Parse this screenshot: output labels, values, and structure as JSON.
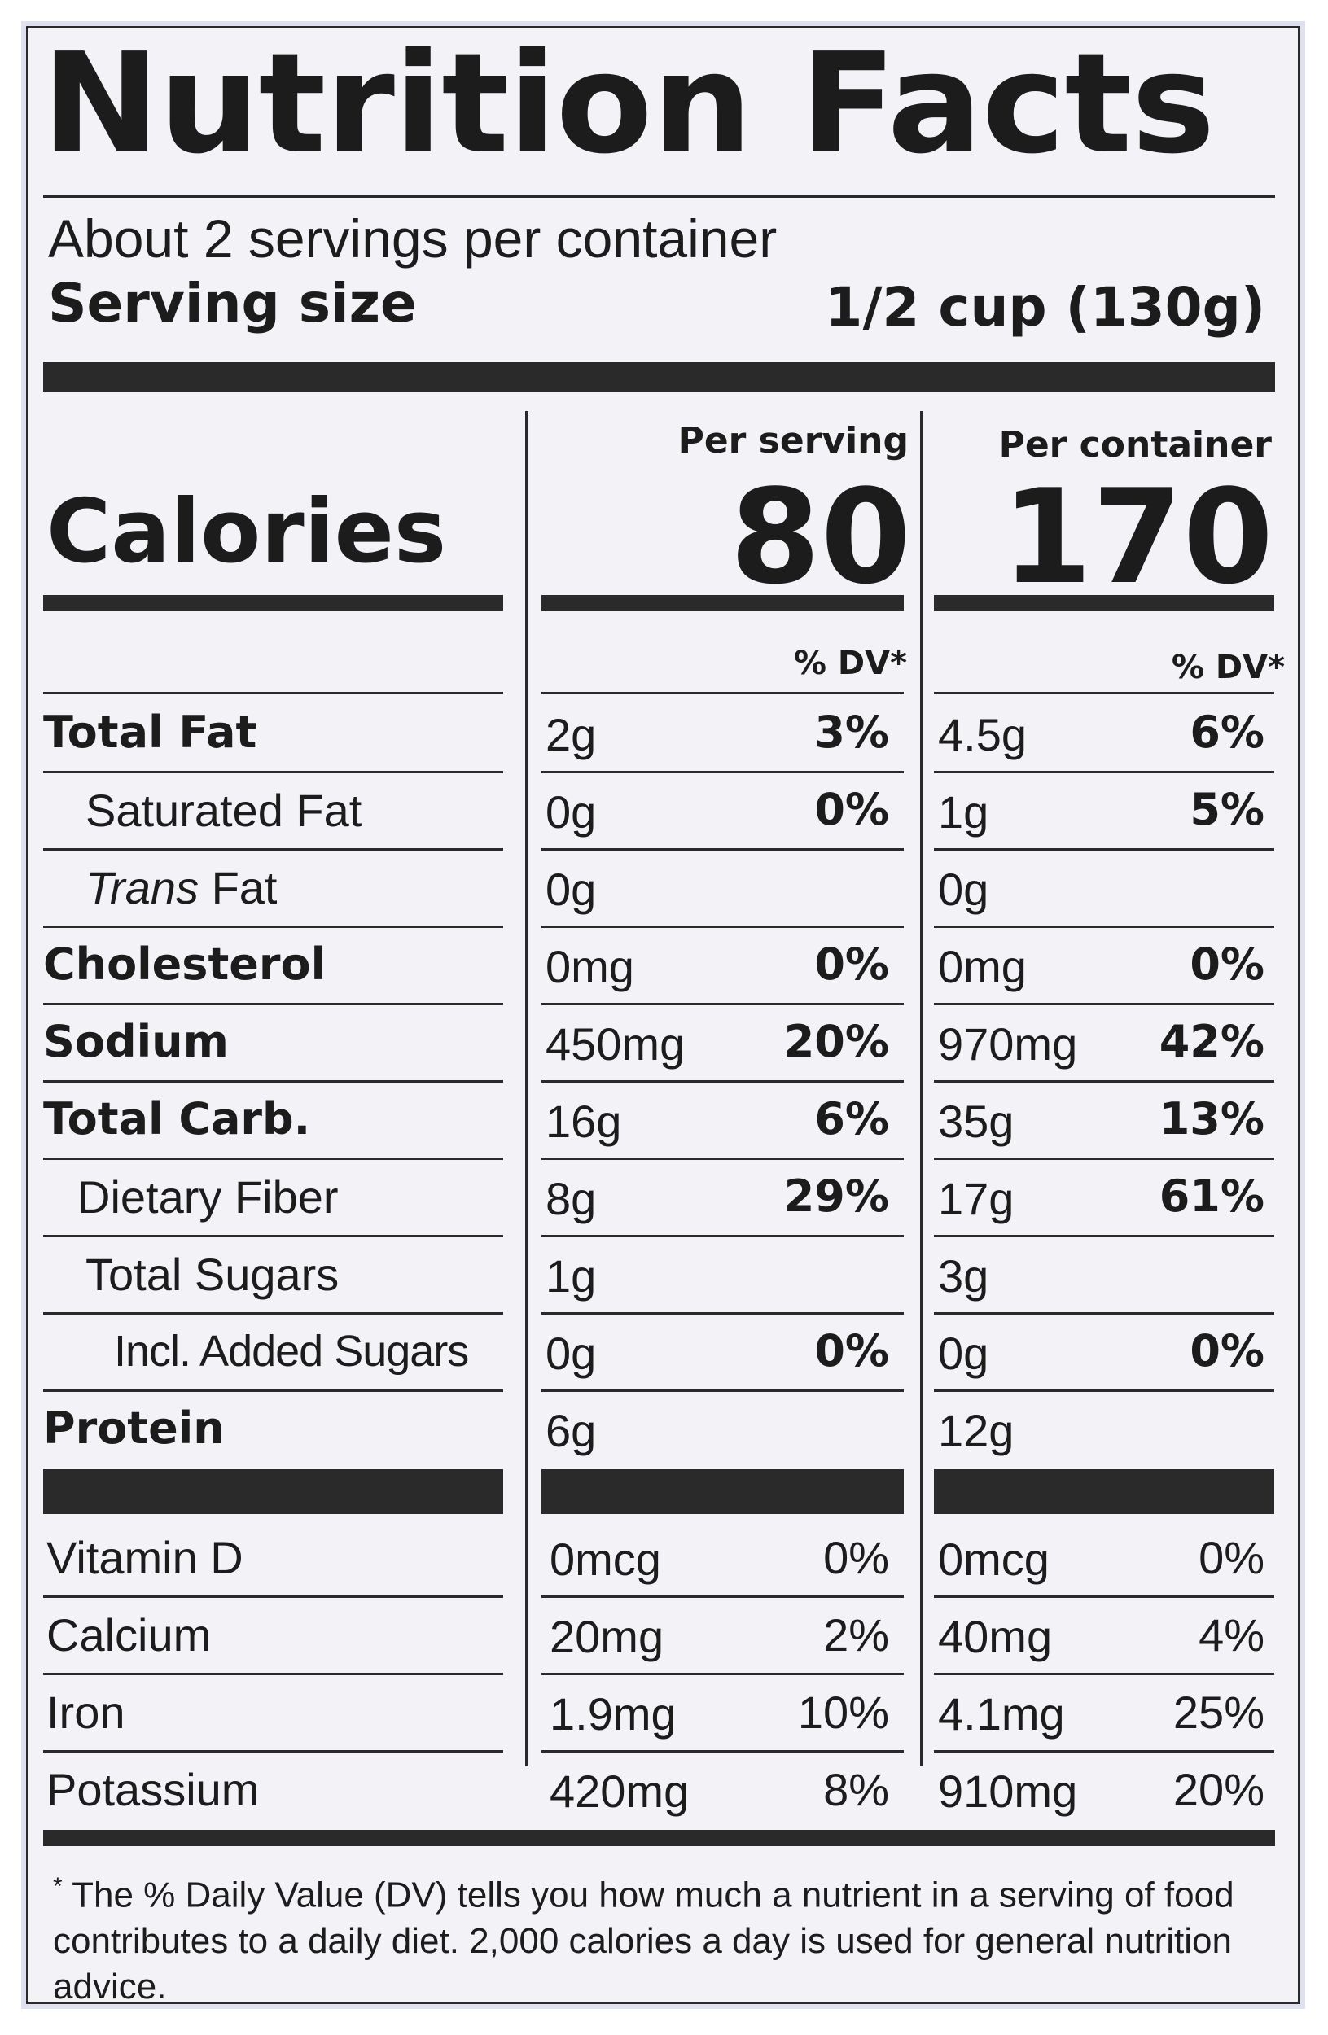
{
  "header": {
    "title": "Nutrition Facts",
    "servings": "About 2 servings per container",
    "serving_size_label": "Serving size",
    "serving_size_value": "1/2 cup (130g)"
  },
  "columns": {
    "per_serving": "Per serving",
    "per_container": "Per container",
    "dv_label": "% DV*"
  },
  "calories": {
    "label": "Calories",
    "per_serving": "80",
    "per_container": "170"
  },
  "nutrients": [
    {
      "name": "Total Fat",
      "serving_amount": "2g",
      "serving_dv": "3%",
      "container_amount": "4.5g",
      "container_dv": "6%"
    },
    {
      "name": "Saturated Fat",
      "serving_amount": "0g",
      "serving_dv": "0%",
      "container_amount": "1g",
      "container_dv": "5%"
    },
    {
      "name_italic": "Trans",
      "name": "Fat",
      "serving_amount": "0g",
      "serving_dv": "",
      "container_amount": "0g",
      "container_dv": ""
    },
    {
      "name": "Cholesterol",
      "serving_amount": "0mg",
      "serving_dv": "0%",
      "container_amount": "0mg",
      "container_dv": "0%"
    },
    {
      "name": "Sodium",
      "serving_amount": "450mg",
      "serving_dv": "20%",
      "container_amount": "970mg",
      "container_dv": "42%"
    },
    {
      "name": "Total Carb.",
      "serving_amount": "16g",
      "serving_dv": "6%",
      "container_amount": "35g",
      "container_dv": "13%"
    },
    {
      "name": "Dietary Fiber",
      "serving_amount": "8g",
      "serving_dv": "29%",
      "container_amount": "17g",
      "container_dv": "61%"
    },
    {
      "name": "Total Sugars",
      "serving_amount": "1g",
      "serving_dv": "",
      "container_amount": "3g",
      "container_dv": ""
    },
    {
      "name": "Incl. Added Sugars",
      "serving_amount": "0g",
      "serving_dv": "0%",
      "container_amount": "0g",
      "container_dv": "0%"
    },
    {
      "name": "Protein",
      "serving_amount": "6g",
      "serving_dv": "",
      "container_amount": "12g",
      "container_dv": ""
    }
  ],
  "vitamins": [
    {
      "name": "Vitamin D",
      "serving_amount": "0mcg",
      "serving_dv": "0%",
      "container_amount": "0mcg",
      "container_dv": "0%"
    },
    {
      "name": "Calcium",
      "serving_amount": "20mg",
      "serving_dv": "2%",
      "container_amount": "40mg",
      "container_dv": "4%"
    },
    {
      "name": "Iron",
      "serving_amount": "1.9mg",
      "serving_dv": "10%",
      "container_amount": "4.1mg",
      "container_dv": "25%"
    },
    {
      "name": "Potassium",
      "serving_amount": "420mg",
      "serving_dv": "8%",
      "container_amount": "910mg",
      "container_dv": "20%"
    }
  ],
  "footnote": {
    "mark": "*",
    "text": "The % Daily Value (DV) tells you how much a nutrient in a serving of food contributes to a daily diet. 2,000 calories a day is used for general nutrition advice."
  }
}
